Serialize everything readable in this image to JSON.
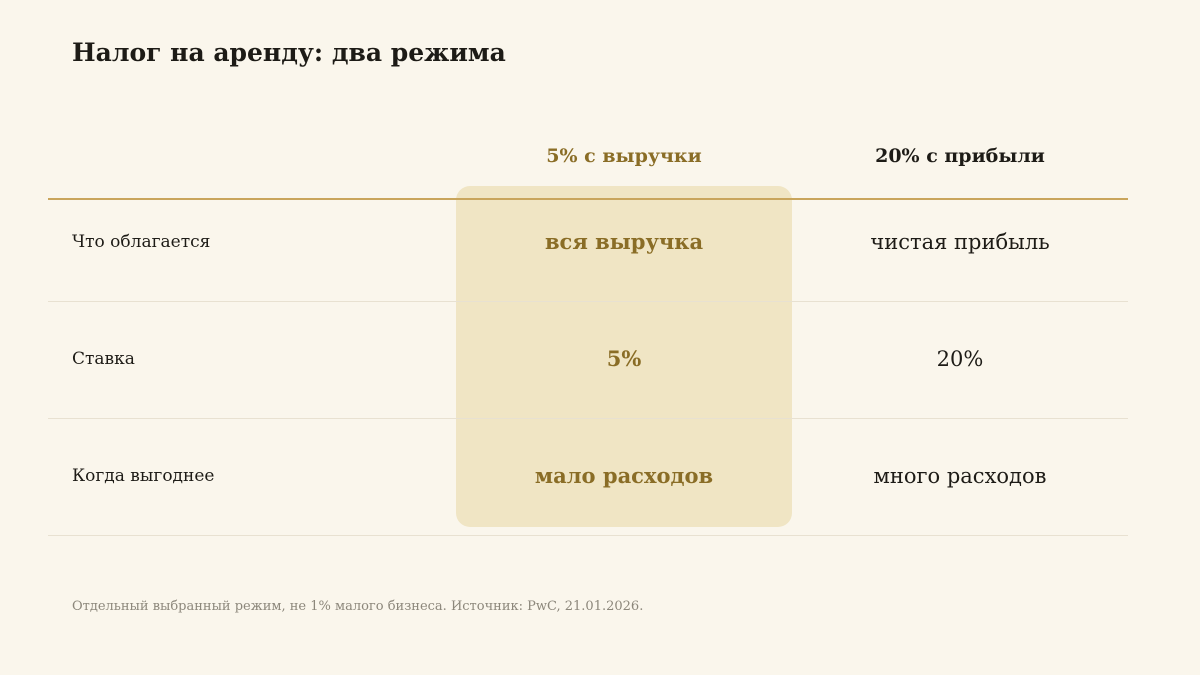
{
  "title": "Налог на аренду: два режима",
  "columns": [
    {
      "label": "5% с выручки",
      "highlighted": true
    },
    {
      "label": "20% с прибыли",
      "highlighted": false
    }
  ],
  "rows": [
    {
      "label": "Что облагается",
      "values": [
        "вся выручка",
        "чистая прибыль"
      ]
    },
    {
      "label": "Ставка",
      "values": [
        "5%",
        "20%"
      ]
    },
    {
      "label": "Когда выгоднее",
      "values": [
        "мало расходов",
        "много расходов"
      ]
    }
  ],
  "footnote": "Отдельный выбранный режим, не 1% малого бизнеса. Источник: PwC, 21.01.2026.",
  "colors": {
    "background": "#faf6ec",
    "highlight_fill": "#f0e5c4",
    "accent": "#8a6d26",
    "header_rule": "#c9a55c",
    "text": "#1d1b16",
    "muted": "#8c877b"
  }
}
